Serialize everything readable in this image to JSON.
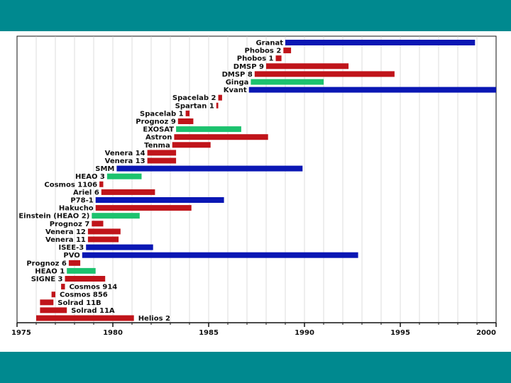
{
  "theme": {
    "band_color": "#00898F",
    "axis_color": "#111111",
    "grid_color": "#c8c8c8"
  },
  "chart_data": {
    "type": "bar",
    "orientation": "horizontal-timeline",
    "title": "",
    "xlabel": "",
    "ylabel": "",
    "xlim": [
      1975,
      2000
    ],
    "xticks": [
      1975,
      1980,
      1985,
      1990,
      1995,
      2000
    ],
    "grid": true,
    "legend": "none",
    "colors": {
      "blue": "#0a17b4",
      "red": "#c0141a",
      "green": "#1cc26e"
    },
    "missions": [
      {
        "name": "Granat",
        "start": 1989.0,
        "end": 1998.9,
        "color": "blue",
        "label_side": "left"
      },
      {
        "name": "Phobos 2",
        "start": 1988.9,
        "end": 1989.3,
        "color": "red",
        "label_side": "left"
      },
      {
        "name": "Phobos 1",
        "start": 1988.5,
        "end": 1988.8,
        "color": "red",
        "label_side": "left"
      },
      {
        "name": "DMSP 9",
        "start": 1988.0,
        "end": 1992.3,
        "color": "red",
        "label_side": "left"
      },
      {
        "name": "DMSP 8",
        "start": 1987.4,
        "end": 1994.7,
        "color": "red",
        "label_side": "left"
      },
      {
        "name": "Ginga",
        "start": 1987.2,
        "end": 1991.0,
        "color": "green",
        "label_side": "left"
      },
      {
        "name": "Kvant",
        "start": 1987.1,
        "end": 2000.0,
        "color": "blue",
        "label_side": "left"
      },
      {
        "name": "Spacelab 2",
        "start": 1985.5,
        "end": 1985.7,
        "color": "red",
        "label_side": "left"
      },
      {
        "name": "Spartan 1",
        "start": 1985.4,
        "end": 1985.5,
        "color": "red",
        "label_side": "left"
      },
      {
        "name": "Spacelab 1",
        "start": 1983.8,
        "end": 1984.0,
        "color": "red",
        "label_side": "left"
      },
      {
        "name": "Prognoz 9",
        "start": 1983.4,
        "end": 1984.2,
        "color": "red",
        "label_side": "left"
      },
      {
        "name": "EXOSAT",
        "start": 1983.3,
        "end": 1986.7,
        "color": "green",
        "label_side": "left"
      },
      {
        "name": "Astron",
        "start": 1983.2,
        "end": 1988.1,
        "color": "red",
        "label_side": "left"
      },
      {
        "name": "Tenma",
        "start": 1983.1,
        "end": 1985.1,
        "color": "red",
        "label_side": "left"
      },
      {
        "name": "Venera 14",
        "start": 1981.8,
        "end": 1983.3,
        "color": "red",
        "label_side": "left"
      },
      {
        "name": "Venera 13",
        "start": 1981.8,
        "end": 1983.3,
        "color": "red",
        "label_side": "left"
      },
      {
        "name": "SMM",
        "start": 1980.2,
        "end": 1989.9,
        "color": "blue",
        "label_side": "left"
      },
      {
        "name": "HEAO 3",
        "start": 1979.7,
        "end": 1981.5,
        "color": "green",
        "label_side": "left"
      },
      {
        "name": "Cosmos 1106",
        "start": 1979.3,
        "end": 1979.5,
        "color": "red",
        "label_side": "left"
      },
      {
        "name": "Ariel 6",
        "start": 1979.4,
        "end": 1982.2,
        "color": "red",
        "label_side": "left"
      },
      {
        "name": "P78-1",
        "start": 1979.1,
        "end": 1985.8,
        "color": "blue",
        "label_side": "left"
      },
      {
        "name": "Hakucho",
        "start": 1979.1,
        "end": 1984.1,
        "color": "red",
        "label_side": "left"
      },
      {
        "name": "Einstein (HEAO 2)",
        "start": 1978.9,
        "end": 1981.4,
        "color": "green",
        "label_side": "left"
      },
      {
        "name": "Prognoz 7",
        "start": 1978.9,
        "end": 1979.5,
        "color": "red",
        "label_side": "left"
      },
      {
        "name": "Venera 12",
        "start": 1978.7,
        "end": 1980.4,
        "color": "red",
        "label_side": "left"
      },
      {
        "name": "Venera 11",
        "start": 1978.7,
        "end": 1980.3,
        "color": "red",
        "label_side": "left"
      },
      {
        "name": "ISEE-3",
        "start": 1978.6,
        "end": 1982.1,
        "color": "blue",
        "label_side": "left"
      },
      {
        "name": "PVO",
        "start": 1978.4,
        "end": 1992.8,
        "color": "blue",
        "label_side": "left"
      },
      {
        "name": "Prognoz 6",
        "start": 1977.7,
        "end": 1978.3,
        "color": "red",
        "label_side": "left"
      },
      {
        "name": "HEAO 1",
        "start": 1977.6,
        "end": 1979.1,
        "color": "green",
        "label_side": "left"
      },
      {
        "name": "SIGNE 3",
        "start": 1977.5,
        "end": 1979.6,
        "color": "red",
        "label_side": "left"
      },
      {
        "name": "Cosmos 914",
        "start": 1977.3,
        "end": 1977.5,
        "color": "red",
        "label_side": "right"
      },
      {
        "name": "Cosmos 856",
        "start": 1976.8,
        "end": 1977.0,
        "color": "red",
        "label_side": "right"
      },
      {
        "name": "Solrad 11B",
        "start": 1976.2,
        "end": 1976.9,
        "color": "red",
        "label_side": "right"
      },
      {
        "name": "Solrad 11A",
        "start": 1976.2,
        "end": 1977.6,
        "color": "red",
        "label_side": "right"
      },
      {
        "name": "Helios 2",
        "start": 1976.0,
        "end": 1981.1,
        "color": "red",
        "label_side": "right"
      }
    ]
  }
}
